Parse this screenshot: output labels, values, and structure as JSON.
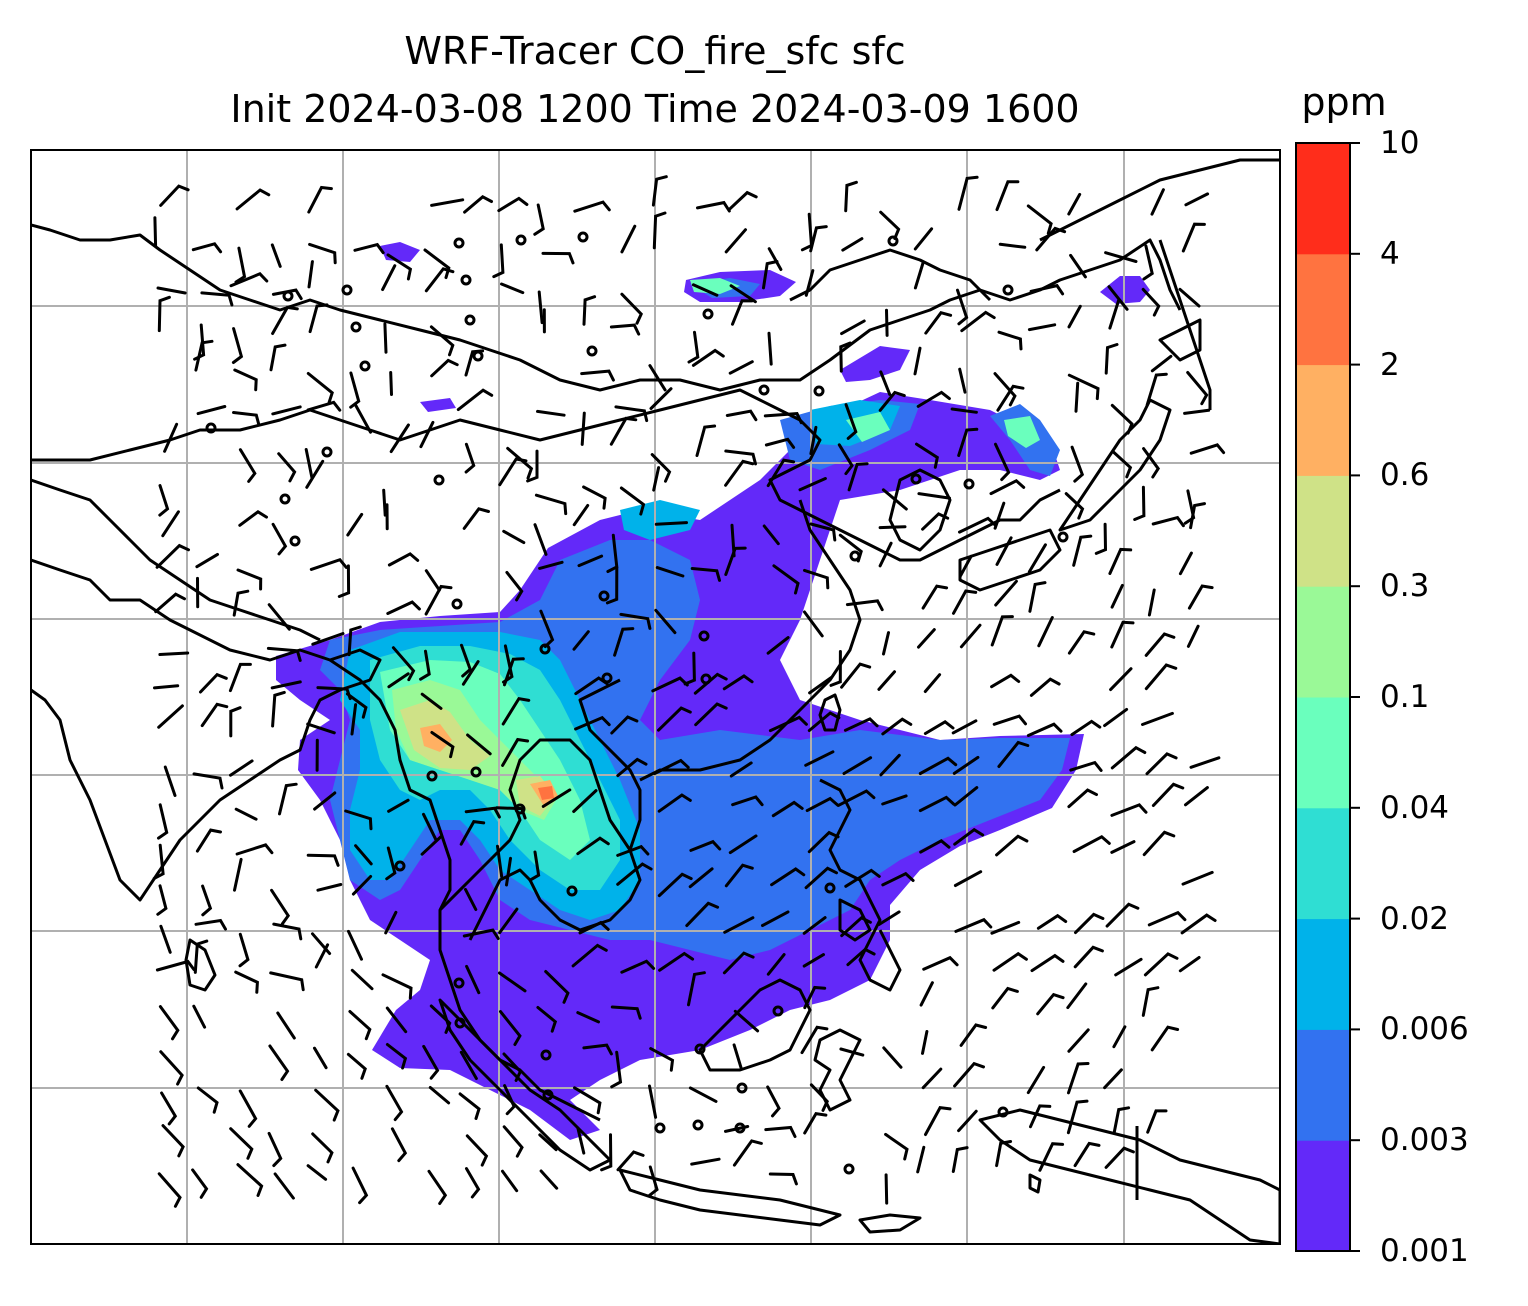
{
  "title": {
    "line1": "WRF-Tracer CO_fire_sfc sfc",
    "line2": "Init 2024-03-08 1200 Time 2024-03-09 1600"
  },
  "colorbar": {
    "unit": "ppm",
    "levels": [
      "0.001",
      "0.003",
      "0.006",
      "0.02",
      "0.04",
      "0.1",
      "0.3",
      "0.6",
      "2",
      "4",
      "10"
    ],
    "colors": [
      "#6329f9",
      "#3272f0",
      "#00b2ea",
      "#2fded3",
      "#6affbd",
      "#9af997",
      "#cfe287",
      "#ffb062",
      "#ff7340",
      "#ff2d1b"
    ]
  },
  "map": {
    "field": "CO_fire_sfc",
    "units": "ppm",
    "overlay": "wind barbs",
    "gridlines": true,
    "coastlines": true,
    "borders": true
  }
}
